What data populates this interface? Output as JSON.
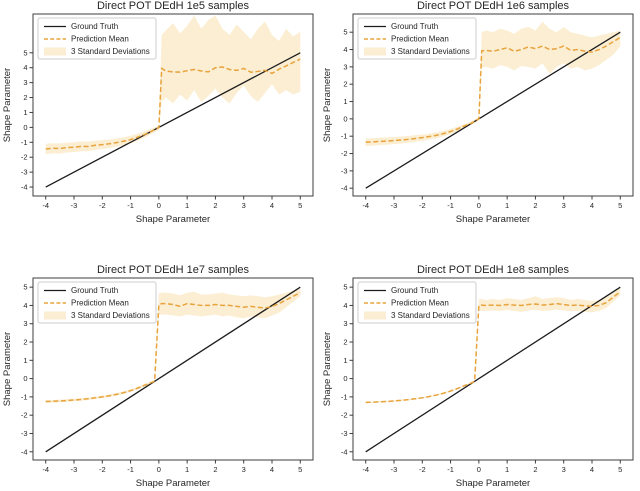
{
  "figure": {
    "background": "#ffffff",
    "rows": 2,
    "cols": 2
  },
  "colors": {
    "ground_truth": "#1b1b1b",
    "prediction_mean": "#e8a33c",
    "band": "#fbeed2",
    "spine": "#3c3c3c",
    "tick_label": "#262626",
    "legend_border": "#cccccc",
    "legend_bg": "#ffffff"
  },
  "legend": {
    "position": "upper left",
    "items": [
      {
        "label": "Ground Truth",
        "sample": "solid-line"
      },
      {
        "label": "Prediction Mean",
        "sample": "dashed-line"
      },
      {
        "label": "3 Standard Deviations",
        "sample": "patch"
      }
    ]
  },
  "chart_data": [
    {
      "type": "line",
      "title": "Direct POT DEdH 1e5 samples",
      "xlabel": "Shape Parameter",
      "ylabel": "Shape Parameter",
      "xlim": [
        -4.45,
        5.45
      ],
      "ylim": [
        -4.6,
        7.6
      ],
      "xticks": [
        -4,
        -3,
        -2,
        -1,
        0,
        1,
        2,
        3,
        4,
        5
      ],
      "yticks": [
        -4,
        -3,
        -2,
        -1,
        0,
        1,
        2,
        3,
        4,
        5
      ],
      "grid": false,
      "legend_position": "upper left",
      "series": {
        "ground_truth": {
          "x": [
            -4,
            5
          ],
          "y": [
            -4,
            5
          ]
        },
        "x": [
          -4,
          -3.75,
          -3.5,
          -3.25,
          -3,
          -2.75,
          -2.5,
          -2.25,
          -2,
          -1.75,
          -1.5,
          -1.25,
          -1,
          -0.75,
          -0.5,
          -0.3,
          -0.15,
          0,
          0.1,
          0.25,
          0.5,
          0.75,
          1,
          1.25,
          1.5,
          1.75,
          2,
          2.25,
          2.5,
          2.75,
          3,
          3.25,
          3.5,
          3.75,
          4,
          4.25,
          4.5,
          4.75,
          5
        ],
        "prediction_mean": [
          -1.45,
          -1.4,
          -1.42,
          -1.35,
          -1.33,
          -1.27,
          -1.28,
          -1.2,
          -1.16,
          -1.1,
          -1.02,
          -0.93,
          -0.82,
          -0.66,
          -0.47,
          -0.3,
          -0.16,
          -0.02,
          3.95,
          3.78,
          3.72,
          3.7,
          3.8,
          3.88,
          3.78,
          3.72,
          4.0,
          4.05,
          3.88,
          3.82,
          3.95,
          3.7,
          3.75,
          3.82,
          3.62,
          3.9,
          4.12,
          4.35,
          4.58
        ],
        "band_upper": [
          -1.1,
          -1.06,
          -1.08,
          -1.02,
          -1.0,
          -0.94,
          -0.96,
          -0.89,
          -0.86,
          -0.81,
          -0.74,
          -0.66,
          -0.56,
          -0.42,
          -0.26,
          -0.12,
          0.0,
          0.12,
          6.2,
          6.5,
          7.0,
          6.3,
          6.8,
          7.5,
          6.6,
          7.2,
          7.5,
          6.6,
          6.2,
          6.9,
          6.4,
          5.9,
          6.6,
          7.1,
          6.2,
          5.8,
          6.6,
          6.1,
          6.4
        ],
        "band_lower": [
          -1.8,
          -1.74,
          -1.76,
          -1.68,
          -1.66,
          -1.6,
          -1.6,
          -1.51,
          -1.46,
          -1.39,
          -1.3,
          -1.2,
          -1.08,
          -0.9,
          -0.68,
          -0.48,
          -0.32,
          -0.16,
          1.7,
          2.0,
          1.6,
          2.2,
          1.8,
          2.5,
          1.7,
          2.1,
          2.6,
          2.0,
          1.6,
          2.3,
          2.8,
          2.1,
          1.7,
          2.3,
          2.9,
          2.2,
          2.5,
          2.2,
          2.4
        ]
      }
    },
    {
      "type": "line",
      "title": "Direct POT DEdH 1e6 samples",
      "xlabel": "Shape Parameter",
      "ylabel": "Shape Parameter",
      "xlim": [
        -4.45,
        5.45
      ],
      "ylim": [
        -4.45,
        6.05
      ],
      "xticks": [
        -4,
        -3,
        -2,
        -1,
        0,
        1,
        2,
        3,
        4,
        5
      ],
      "yticks": [
        -4,
        -3,
        -2,
        -1,
        0,
        1,
        2,
        3,
        4,
        5
      ],
      "grid": false,
      "legend_position": "upper left",
      "series": {
        "ground_truth": {
          "x": [
            -4,
            5
          ],
          "y": [
            -4,
            5
          ]
        },
        "x": [
          -4,
          -3.75,
          -3.5,
          -3.25,
          -3,
          -2.75,
          -2.5,
          -2.25,
          -2,
          -1.75,
          -1.5,
          -1.25,
          -1,
          -0.75,
          -0.5,
          -0.3,
          -0.15,
          0,
          0.1,
          0.25,
          0.5,
          0.75,
          1,
          1.25,
          1.5,
          1.75,
          2,
          2.25,
          2.5,
          2.75,
          3,
          3.25,
          3.5,
          3.75,
          4,
          4.25,
          4.5,
          4.75,
          5
        ],
        "prediction_mean": [
          -1.35,
          -1.33,
          -1.3,
          -1.28,
          -1.25,
          -1.22,
          -1.18,
          -1.13,
          -1.08,
          -1.02,
          -0.95,
          -0.85,
          -0.73,
          -0.58,
          -0.4,
          -0.27,
          -0.14,
          0.0,
          3.92,
          3.95,
          3.9,
          4.0,
          4.1,
          3.9,
          4.0,
          4.15,
          4.05,
          4.2,
          4.0,
          4.05,
          4.2,
          3.95,
          4.0,
          3.9,
          3.85,
          4.0,
          4.2,
          4.45,
          4.7
        ],
        "band_upper": [
          -1.13,
          -1.11,
          -1.09,
          -1.07,
          -1.05,
          -1.02,
          -0.99,
          -0.94,
          -0.9,
          -0.85,
          -0.78,
          -0.69,
          -0.58,
          -0.45,
          -0.29,
          -0.17,
          -0.04,
          0.1,
          5.0,
          5.1,
          5.0,
          5.2,
          5.1,
          4.9,
          5.2,
          5.3,
          5.1,
          5.6,
          5.2,
          5.0,
          5.3,
          5.0,
          4.9,
          4.8,
          4.7,
          4.8,
          4.9,
          5.0,
          5.1
        ],
        "band_lower": [
          -1.57,
          -1.55,
          -1.51,
          -1.49,
          -1.45,
          -1.42,
          -1.37,
          -1.32,
          -1.26,
          -1.19,
          -1.12,
          -1.01,
          -0.88,
          -0.71,
          -0.51,
          -0.37,
          -0.24,
          -0.1,
          2.95,
          3.0,
          2.9,
          3.1,
          3.0,
          2.8,
          3.05,
          3.0,
          2.9,
          3.2,
          2.6,
          3.0,
          3.2,
          2.9,
          3.0,
          2.8,
          2.9,
          3.1,
          3.4,
          3.7,
          4.2
        ]
      }
    },
    {
      "type": "line",
      "title": "Direct POT DEdH 1e7 samples",
      "xlabel": "Shape Parameter",
      "ylabel": "Shape Parameter",
      "xlim": [
        -4.45,
        5.45
      ],
      "ylim": [
        -4.45,
        5.5
      ],
      "xticks": [
        -4,
        -3,
        -2,
        -1,
        0,
        1,
        2,
        3,
        4,
        5
      ],
      "yticks": [
        -4,
        -3,
        -2,
        -1,
        0,
        1,
        2,
        3,
        4,
        5
      ],
      "grid": false,
      "legend_position": "upper left",
      "series": {
        "ground_truth": {
          "x": [
            -4,
            5
          ],
          "y": [
            -4,
            5
          ]
        },
        "x": [
          -4,
          -3.75,
          -3.5,
          -3.25,
          -3,
          -2.75,
          -2.5,
          -2.25,
          -2,
          -1.75,
          -1.5,
          -1.25,
          -1,
          -0.75,
          -0.5,
          -0.3,
          -0.15,
          0,
          0.1,
          0.25,
          0.5,
          0.75,
          1,
          1.25,
          1.5,
          1.75,
          2,
          2.25,
          2.5,
          2.75,
          3,
          3.25,
          3.5,
          3.75,
          4,
          4.25,
          4.5,
          4.75,
          5
        ],
        "prediction_mean": [
          -1.25,
          -1.24,
          -1.22,
          -1.2,
          -1.17,
          -1.14,
          -1.1,
          -1.05,
          -1.0,
          -0.94,
          -0.86,
          -0.77,
          -0.66,
          -0.52,
          -0.36,
          -0.24,
          -0.14,
          4.05,
          4.1,
          4.1,
          4.05,
          3.95,
          4.1,
          4.05,
          4.0,
          4.0,
          4.05,
          4.0,
          4.0,
          3.95,
          3.9,
          3.95,
          3.9,
          3.85,
          3.95,
          4.1,
          4.3,
          4.5,
          4.7
        ],
        "band_upper": [
          -1.18,
          -1.17,
          -1.15,
          -1.13,
          -1.1,
          -1.07,
          -1.03,
          -0.98,
          -0.93,
          -0.87,
          -0.79,
          -0.7,
          -0.59,
          -0.45,
          -0.29,
          -0.17,
          -0.07,
          4.65,
          4.7,
          4.7,
          4.65,
          4.55,
          4.7,
          4.75,
          4.6,
          4.6,
          4.65,
          4.7,
          4.6,
          4.55,
          4.5,
          4.55,
          4.5,
          4.45,
          4.5,
          4.6,
          4.7,
          4.8,
          4.9
        ],
        "band_lower": [
          -1.32,
          -1.31,
          -1.29,
          -1.27,
          -1.24,
          -1.21,
          -1.17,
          -1.12,
          -1.07,
          -1.01,
          -0.93,
          -0.84,
          -0.73,
          -0.59,
          -0.43,
          -0.31,
          -0.21,
          3.5,
          3.5,
          3.5,
          3.45,
          3.4,
          3.5,
          3.45,
          3.4,
          3.45,
          3.5,
          3.4,
          3.45,
          3.35,
          3.3,
          3.4,
          3.35,
          3.3,
          3.45,
          3.6,
          3.9,
          4.2,
          4.5
        ]
      }
    },
    {
      "type": "line",
      "title": "Direct POT DEdH 1e8 samples",
      "xlabel": "Shape Parameter",
      "ylabel": "Shape Parameter",
      "xlim": [
        -4.45,
        5.45
      ],
      "ylim": [
        -4.45,
        5.5
      ],
      "xticks": [
        -4,
        -3,
        -2,
        -1,
        0,
        1,
        2,
        3,
        4,
        5
      ],
      "yticks": [
        -4,
        -3,
        -2,
        -1,
        0,
        1,
        2,
        3,
        4,
        5
      ],
      "grid": false,
      "legend_position": "upper left",
      "series": {
        "ground_truth": {
          "x": [
            -4,
            5
          ],
          "y": [
            -4,
            5
          ]
        },
        "x": [
          -4,
          -3.75,
          -3.5,
          -3.25,
          -3,
          -2.75,
          -2.5,
          -2.25,
          -2,
          -1.75,
          -1.5,
          -1.25,
          -1,
          -0.75,
          -0.5,
          -0.3,
          -0.15,
          0,
          0.1,
          0.25,
          0.5,
          0.75,
          1,
          1.25,
          1.5,
          1.75,
          2,
          2.25,
          2.5,
          2.75,
          3,
          3.25,
          3.5,
          3.75,
          4,
          4.25,
          4.5,
          4.75,
          5
        ],
        "prediction_mean": [
          -1.3,
          -1.29,
          -1.27,
          -1.25,
          -1.22,
          -1.19,
          -1.15,
          -1.1,
          -1.05,
          -0.98,
          -0.9,
          -0.8,
          -0.68,
          -0.54,
          -0.38,
          -0.26,
          -0.15,
          4.0,
          4.02,
          4.0,
          4.02,
          4.0,
          4.05,
          4.02,
          4.0,
          4.05,
          4.08,
          4.02,
          4.05,
          4.1,
          4.05,
          4.0,
          4.02,
          3.98,
          3.95,
          4.0,
          4.15,
          4.45,
          4.75
        ],
        "band_upper": [
          -1.26,
          -1.25,
          -1.23,
          -1.21,
          -1.18,
          -1.15,
          -1.11,
          -1.06,
          -1.01,
          -0.94,
          -0.86,
          -0.76,
          -0.64,
          -0.5,
          -0.34,
          -0.22,
          -0.11,
          4.35,
          4.35,
          4.3,
          4.35,
          4.3,
          4.4,
          4.35,
          4.3,
          4.4,
          4.5,
          4.35,
          4.4,
          4.45,
          4.4,
          4.3,
          4.35,
          4.3,
          4.25,
          4.3,
          4.45,
          4.7,
          4.95
        ],
        "band_lower": [
          -1.34,
          -1.33,
          -1.31,
          -1.29,
          -1.26,
          -1.23,
          -1.19,
          -1.14,
          -1.09,
          -1.02,
          -0.94,
          -0.84,
          -0.72,
          -0.58,
          -0.42,
          -0.3,
          -0.19,
          3.7,
          3.7,
          3.7,
          3.72,
          3.7,
          3.75,
          3.7,
          3.65,
          3.72,
          3.75,
          3.7,
          3.72,
          3.78,
          3.72,
          3.68,
          3.7,
          3.65,
          3.62,
          3.7,
          3.85,
          4.2,
          4.55
        ]
      }
    }
  ]
}
